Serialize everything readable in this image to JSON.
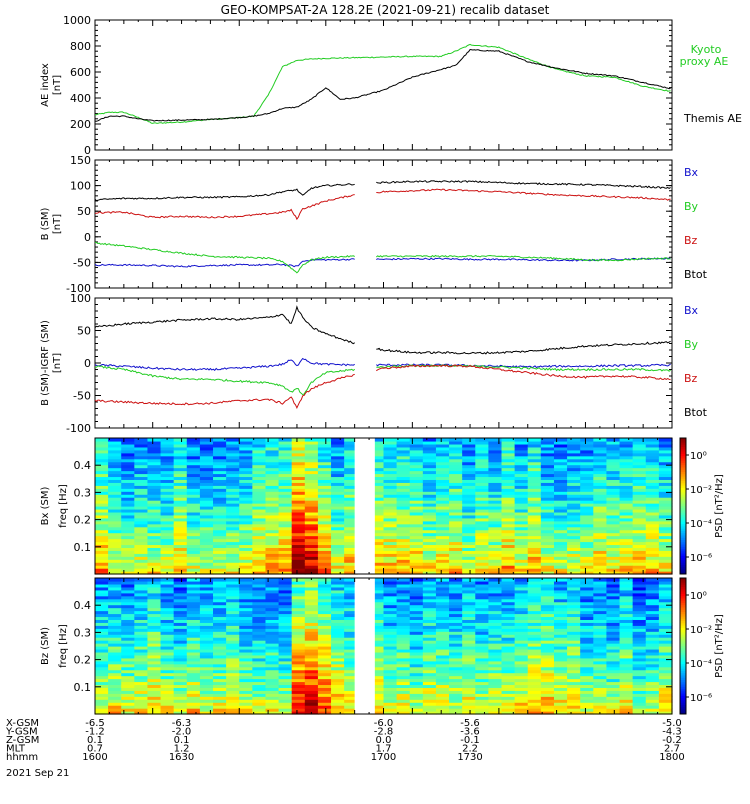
{
  "title": "GEO-KOMPSAT-2A 128.2E (2021-09-21) recalib dataset",
  "colors": {
    "black": "#000000",
    "green": "#22cc22",
    "red": "#cc1111",
    "blue": "#1111cc"
  },
  "chart_data": [
    {
      "type": "line",
      "ylabel": "AE index\n[nT]",
      "ylim": [
        0,
        1000
      ],
      "yticks": [
        0,
        200,
        400,
        600,
        800,
        1000
      ],
      "xlim": [
        1600,
        1800
      ],
      "series": [
        {
          "name": "Kyoto\nproxy AE",
          "color": "#22cc22",
          "x": [
            1600,
            1605,
            1610,
            1615,
            1620,
            1630,
            1640,
            1645,
            1650,
            1655,
            1660,
            1665,
            1670,
            1675,
            1680,
            1690,
            1700,
            1710,
            1720,
            1725,
            1730,
            1740,
            1750,
            1760,
            1770,
            1780,
            1790,
            1800
          ],
          "y": [
            270,
            290,
            290,
            250,
            205,
            215,
            235,
            240,
            250,
            260,
            420,
            640,
            690,
            700,
            705,
            710,
            715,
            720,
            720,
            760,
            810,
            790,
            700,
            620,
            570,
            560,
            490,
            450
          ]
        },
        {
          "name": "Themis AE",
          "color": "#000000",
          "x": [
            1600,
            1605,
            1610,
            1615,
            1620,
            1630,
            1640,
            1650,
            1655,
            1660,
            1665,
            1670,
            1675,
            1680,
            1685,
            1690,
            1700,
            1710,
            1720,
            1725,
            1730,
            1740,
            1750,
            1760,
            1770,
            1780,
            1790,
            1800
          ],
          "y": [
            220,
            260,
            260,
            240,
            225,
            230,
            235,
            250,
            260,
            280,
            320,
            330,
            390,
            480,
            390,
            400,
            460,
            560,
            620,
            650,
            770,
            760,
            680,
            630,
            590,
            570,
            520,
            470
          ]
        }
      ]
    },
    {
      "type": "line",
      "ylabel": "B (SM)\n[nT]",
      "ylim": [
        -100,
        150
      ],
      "yticks": [
        -100,
        -50,
        0,
        50,
        100,
        150
      ],
      "xlim": [
        1600,
        1800
      ],
      "series": [
        {
          "name": "Bx",
          "color": "#1111cc",
          "x": [
            1600,
            1610,
            1620,
            1630,
            1640,
            1650,
            1660,
            1665,
            1670,
            1672,
            1675,
            1680,
            1690,
            1700,
            1710,
            1720,
            1730,
            1740,
            1750,
            1760,
            1770,
            1780,
            1790,
            1800
          ],
          "y": [
            -55,
            -55,
            -56,
            -58,
            -56,
            -55,
            -55,
            -54,
            -58,
            -48,
            -45,
            -45,
            -44,
            -44,
            -43,
            -43,
            -44,
            -44,
            -45,
            -46,
            -46,
            -44,
            -43,
            -42
          ]
        },
        {
          "name": "By",
          "color": "#22cc22",
          "x": [
            1600,
            1610,
            1620,
            1630,
            1640,
            1650,
            1660,
            1665,
            1670,
            1672,
            1675,
            1680,
            1690,
            1700,
            1710,
            1720,
            1730,
            1740,
            1750,
            1760,
            1770,
            1780,
            1790,
            1800
          ],
          "y": [
            -12,
            -18,
            -25,
            -32,
            -38,
            -40,
            -42,
            -48,
            -70,
            -55,
            -45,
            -40,
            -38,
            -38,
            -38,
            -38,
            -38,
            -38,
            -40,
            -42,
            -45,
            -46,
            -43,
            -42
          ]
        },
        {
          "name": "Bz",
          "color": "#cc1111",
          "x": [
            1600,
            1610,
            1620,
            1630,
            1640,
            1650,
            1660,
            1665,
            1668,
            1670,
            1672,
            1675,
            1680,
            1690,
            1700,
            1710,
            1720,
            1730,
            1740,
            1750,
            1760,
            1770,
            1780,
            1790,
            1800
          ],
          "y": [
            47,
            48,
            38,
            40,
            38,
            40,
            45,
            48,
            52,
            35,
            55,
            60,
            70,
            82,
            88,
            90,
            92,
            90,
            88,
            85,
            82,
            80,
            78,
            76,
            72
          ]
        },
        {
          "name": "Btot",
          "color": "#000000",
          "x": [
            1600,
            1610,
            1620,
            1630,
            1640,
            1650,
            1660,
            1665,
            1670,
            1672,
            1675,
            1680,
            1690,
            1700,
            1710,
            1720,
            1730,
            1740,
            1750,
            1760,
            1770,
            1780,
            1790,
            1800
          ],
          "y": [
            72,
            75,
            75,
            77,
            77,
            78,
            82,
            88,
            92,
            80,
            95,
            100,
            103,
            106,
            108,
            108,
            108,
            106,
            104,
            103,
            102,
            100,
            98,
            95
          ]
        }
      ]
    },
    {
      "type": "line",
      "ylabel": "B (SM)-IGRF (SM)\n[nT]",
      "ylim": [
        -100,
        100
      ],
      "yticks": [
        -100,
        -50,
        0,
        50,
        100
      ],
      "xlim": [
        1600,
        1800
      ],
      "series": [
        {
          "name": "Bx",
          "color": "#1111cc",
          "x": [
            1600,
            1610,
            1620,
            1630,
            1640,
            1650,
            1660,
            1665,
            1668,
            1670,
            1672,
            1675,
            1680,
            1690,
            1700,
            1710,
            1720,
            1730,
            1740,
            1750,
            1760,
            1770,
            1780,
            1790,
            1800
          ],
          "y": [
            -3,
            -5,
            -8,
            -10,
            -10,
            -8,
            -5,
            -2,
            5,
            -5,
            8,
            0,
            -2,
            -3,
            -3,
            -3,
            -3,
            -4,
            -5,
            -6,
            -5,
            -5,
            -4,
            -4,
            -3
          ]
        },
        {
          "name": "By",
          "color": "#22cc22",
          "x": [
            1600,
            1610,
            1620,
            1630,
            1640,
            1650,
            1660,
            1665,
            1668,
            1670,
            1672,
            1675,
            1680,
            1690,
            1700,
            1710,
            1720,
            1730,
            1740,
            1750,
            1760,
            1770,
            1780,
            1790,
            1800
          ],
          "y": [
            -5,
            -10,
            -20,
            -25,
            -25,
            -28,
            -30,
            -35,
            -45,
            -38,
            -50,
            -30,
            -15,
            -10,
            -6,
            -4,
            -4,
            -5,
            -6,
            -8,
            -10,
            -10,
            -10,
            -10,
            -12
          ]
        },
        {
          "name": "Bz",
          "color": "#cc1111",
          "x": [
            1600,
            1610,
            1620,
            1630,
            1640,
            1650,
            1660,
            1665,
            1668,
            1670,
            1672,
            1675,
            1680,
            1690,
            1700,
            1710,
            1720,
            1730,
            1740,
            1750,
            1760,
            1770,
            1780,
            1790,
            1800
          ],
          "y": [
            -58,
            -60,
            -62,
            -63,
            -62,
            -58,
            -56,
            -62,
            -52,
            -70,
            -50,
            -40,
            -30,
            -18,
            -8,
            -5,
            -4,
            -5,
            -10,
            -15,
            -20,
            -22,
            -20,
            -22,
            -25
          ]
        },
        {
          "name": "Btot",
          "color": "#000000",
          "x": [
            1600,
            1610,
            1620,
            1630,
            1640,
            1650,
            1660,
            1665,
            1668,
            1670,
            1672,
            1675,
            1680,
            1690,
            1700,
            1710,
            1720,
            1730,
            1740,
            1750,
            1760,
            1770,
            1780,
            1790,
            1800
          ],
          "y": [
            55,
            60,
            63,
            66,
            68,
            67,
            70,
            75,
            60,
            85,
            70,
            55,
            45,
            30,
            20,
            16,
            16,
            15,
            16,
            18,
            22,
            26,
            28,
            30,
            32
          ]
        }
      ]
    },
    {
      "type": "heatmap",
      "ylabel": "Bx (SM)",
      "ylabel2": "freq [Hz]",
      "ylim": [
        0,
        0.5
      ],
      "yticks": [
        0.1,
        0.2,
        0.3,
        0.4
      ],
      "xlim": [
        1600,
        1800
      ],
      "gap": [
        1690,
        1697
      ],
      "colorbar": {
        "label": "PSD [nT²/Hz]",
        "ticks": [
          "10⁰",
          "10⁻²",
          "10⁻⁴",
          "10⁻⁶"
        ],
        "log_range": [
          -7,
          1
        ]
      }
    },
    {
      "type": "heatmap",
      "ylabel": "Bz (SM)",
      "ylabel2": "freq [Hz]",
      "ylim": [
        0,
        0.5
      ],
      "yticks": [
        0.1,
        0.2,
        0.3,
        0.4
      ],
      "xlim": [
        1600,
        1800
      ],
      "gap": [
        1690,
        1697
      ],
      "colorbar": {
        "label": "PSD [nT²/Hz]",
        "ticks": [
          "10⁰",
          "10⁻²",
          "10⁻⁴",
          "10⁻⁶"
        ],
        "log_range": [
          -7,
          1
        ]
      }
    }
  ],
  "ephemeris": {
    "rows": [
      {
        "label": "X-GSM",
        "values": [
          "-6.5",
          "-6.3",
          "-6.0",
          "-5.6",
          "-5.0"
        ]
      },
      {
        "label": "Y-GSM",
        "values": [
          "-1.2",
          "-2.0",
          "-2.8",
          "-3.6",
          "-4.3"
        ]
      },
      {
        "label": "Z-GSM",
        "values": [
          "0.1",
          "0.1",
          "0.0",
          "-0.1",
          "-0.2"
        ]
      },
      {
        "label": "MLT",
        "values": [
          "0.7",
          "1.2",
          "1.7",
          "2.2",
          "2.7"
        ]
      },
      {
        "label": "hhmm",
        "values": [
          "1600",
          "1630",
          "1700",
          "1730",
          "1800"
        ]
      }
    ],
    "date": "2021 Sep 21"
  }
}
